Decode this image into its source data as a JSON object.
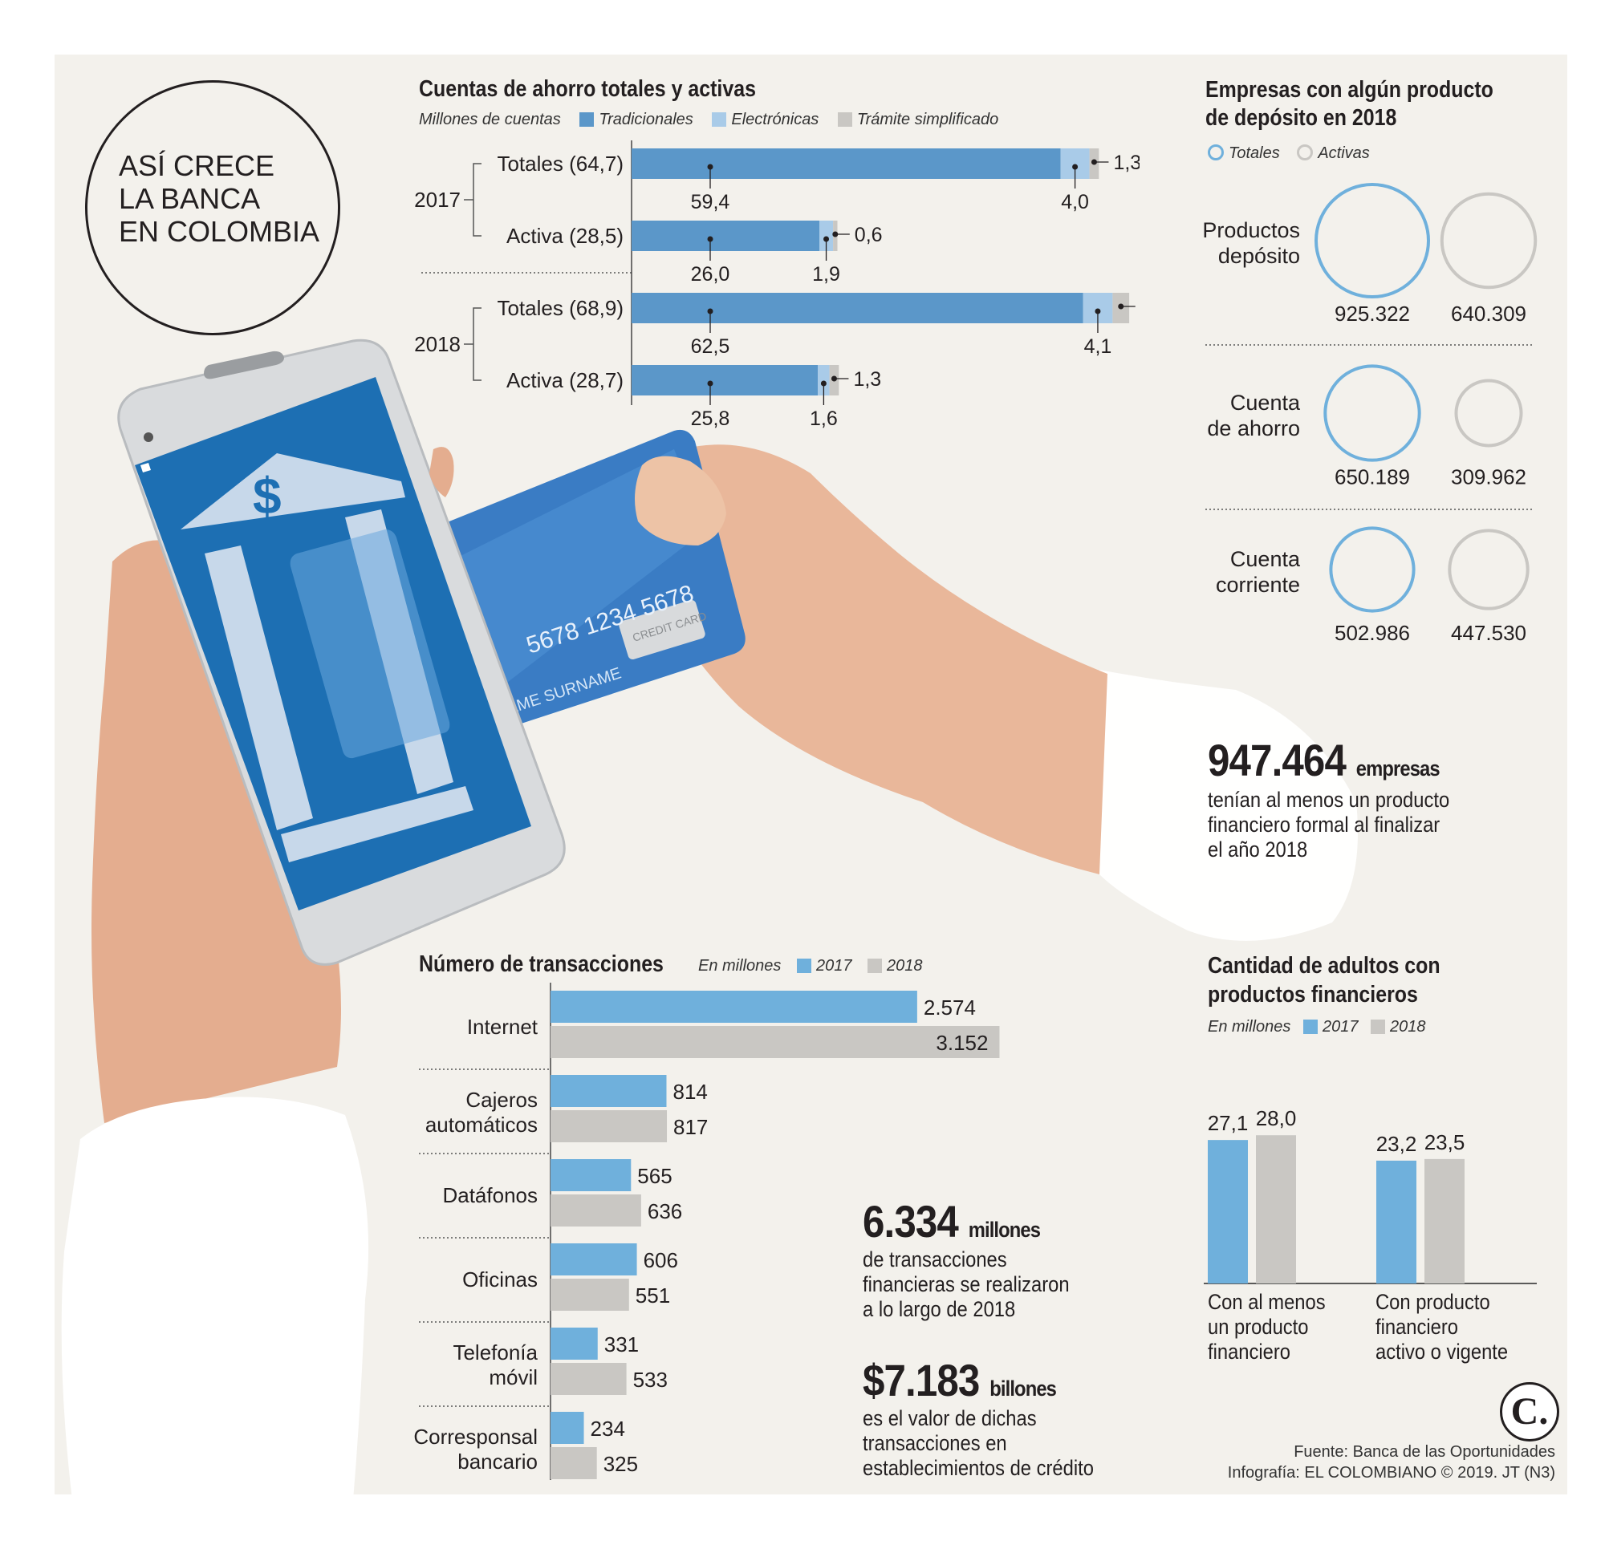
{
  "badge": {
    "line1": "ASÍ CRECE",
    "line2": "LA BANCA",
    "line3": "EN COLOMBIA"
  },
  "colors": {
    "tradicional": "#5b97c9",
    "electronica": "#a9cbe8",
    "tramite": "#c9c7c3",
    "c2017": "#6fb0dc",
    "c2018": "#c9c7c3",
    "circle_total": "#6fb0dc",
    "circle_activa": "#c9c7c3"
  },
  "cuentas": {
    "title": "Cuentas de ahorro totales y activas",
    "units": "Millones de cuentas",
    "legend": [
      "Tradicionales",
      "Electrónicas",
      "Trámite simplificado"
    ],
    "years": [
      "2017",
      "2018"
    ],
    "rows": [
      {
        "label": "Totales (64,7)",
        "trad": "59,4",
        "elec": "4,0",
        "tram": "1,3"
      },
      {
        "label": "Activa (28,5)",
        "trad": "26,0",
        "elec": "1,9",
        "tram": "0,6"
      },
      {
        "label": "Totales (68,9)",
        "trad": "62,5",
        "elec": "4,1",
        "tram": "2,3"
      },
      {
        "label": "Activa (28,7)",
        "trad": "25,8",
        "elec": "1,6",
        "tram": "1,3"
      }
    ]
  },
  "empresas": {
    "title_line1": "Empresas con algún producto",
    "title_line2": "de depósito en 2018",
    "legend": [
      "Totales",
      "Activas"
    ],
    "rows": [
      {
        "label_line1": "Productos",
        "label_line2": "depósito",
        "totales": "925.322",
        "activas": "640.309"
      },
      {
        "label_line1": "Cuenta",
        "label_line2": "de ahorro",
        "totales": "650.189",
        "activas": "309.962"
      },
      {
        "label_line1": "Cuenta",
        "label_line2": "corriente",
        "totales": "502.986",
        "activas": "447.530"
      }
    ]
  },
  "highlight_empresas": {
    "number": "947.464",
    "unit": "empresas",
    "line1": "tenían al menos un producto",
    "line2": "financiero formal al finalizar",
    "line3": "el año 2018"
  },
  "transacciones": {
    "title": "Número de transacciones",
    "units": "En millones",
    "legend": [
      "2017",
      "2018"
    ],
    "rows": [
      {
        "label_line1": "Internet",
        "label_line2": "",
        "v2017": "2.574",
        "v2018": "3.152"
      },
      {
        "label_line1": "Cajeros",
        "label_line2": "automáticos",
        "v2017": "814",
        "v2018": "817"
      },
      {
        "label_line1": "Datáfonos",
        "label_line2": "",
        "v2017": "565",
        "v2018": "636"
      },
      {
        "label_line1": "Oficinas",
        "label_line2": "",
        "v2017": "606",
        "v2018": "551"
      },
      {
        "label_line1": "Telefonía",
        "label_line2": "móvil",
        "v2017": "331",
        "v2018": "533"
      },
      {
        "label_line1": "Corresponsal",
        "label_line2": "bancario",
        "v2017": "234",
        "v2018": "325"
      }
    ]
  },
  "highlight_trans": {
    "number": "6.334",
    "unit": "millones",
    "line1": "de transacciones",
    "line2": "financieras se realizaron",
    "line3": "a lo largo de 2018"
  },
  "highlight_valor": {
    "number": "$7.183",
    "unit": "billones",
    "line1": "es el valor de dichas",
    "line2": "transacciones en",
    "line3": "establecimientos de crédito"
  },
  "adultos": {
    "title_line1": "Cantidad de adultos con",
    "title_line2": "productos financieros",
    "units": "En millones",
    "legend": [
      "2017",
      "2018"
    ],
    "groups": [
      {
        "label_line1": "Con al menos",
        "label_line2": "un producto",
        "label_line3": "financiero",
        "v2017": "27,1",
        "v2018": "28,0"
      },
      {
        "label_line1": "Con producto",
        "label_line2": "financiero",
        "label_line3": "activo o vigente",
        "v2017": "23,2",
        "v2018": "23,5"
      }
    ]
  },
  "logo": {
    "letter": "C."
  },
  "footer": {
    "line1": "Fuente: Banca de las Oportunidades",
    "line2": "Infografía: EL COLOMBIANO © 2019. JT (N3)"
  },
  "card": {
    "number": "5678 1234 5678",
    "name": "NAME SURNAME",
    "brand": "CREDIT CARD",
    "dollar": "$"
  },
  "chart_data": [
    {
      "type": "bar",
      "title": "Cuentas de ahorro totales y activas",
      "ylabel": "Millones de cuentas",
      "categories": [
        "2017 Totales",
        "2017 Activa",
        "2018 Totales",
        "2018 Activa"
      ],
      "series": [
        {
          "name": "Tradicionales",
          "values": [
            59.4,
            26.0,
            62.5,
            25.8
          ]
        },
        {
          "name": "Electrónicas",
          "values": [
            4.0,
            1.9,
            4.1,
            1.6
          ]
        },
        {
          "name": "Trámite simplificado",
          "values": [
            1.3,
            0.6,
            2.3,
            1.3
          ]
        }
      ]
    },
    {
      "type": "bar",
      "title": "Número de transacciones",
      "ylabel": "En millones",
      "categories": [
        "Internet",
        "Cajeros automáticos",
        "Datáfonos",
        "Oficinas",
        "Telefonía móvil",
        "Corresponsal bancario"
      ],
      "series": [
        {
          "name": "2017",
          "values": [
            2574,
            814,
            565,
            606,
            331,
            234
          ]
        },
        {
          "name": "2018",
          "values": [
            3152,
            817,
            636,
            551,
            533,
            325
          ]
        }
      ]
    },
    {
      "type": "bar",
      "title": "Cantidad de adultos con productos financieros",
      "ylabel": "En millones",
      "categories": [
        "Con al menos un producto financiero",
        "Con producto financiero activo o vigente"
      ],
      "series": [
        {
          "name": "2017",
          "values": [
            27.1,
            23.2
          ]
        },
        {
          "name": "2018",
          "values": [
            28.0,
            23.5
          ]
        }
      ]
    },
    {
      "type": "bubble",
      "title": "Empresas con algún producto de depósito en 2018",
      "categories": [
        "Productos depósito",
        "Cuenta de ahorro",
        "Cuenta corriente"
      ],
      "series": [
        {
          "name": "Totales",
          "values": [
            925322,
            650189,
            502986
          ]
        },
        {
          "name": "Activas",
          "values": [
            640309,
            309962,
            447530
          ]
        }
      ]
    }
  ]
}
